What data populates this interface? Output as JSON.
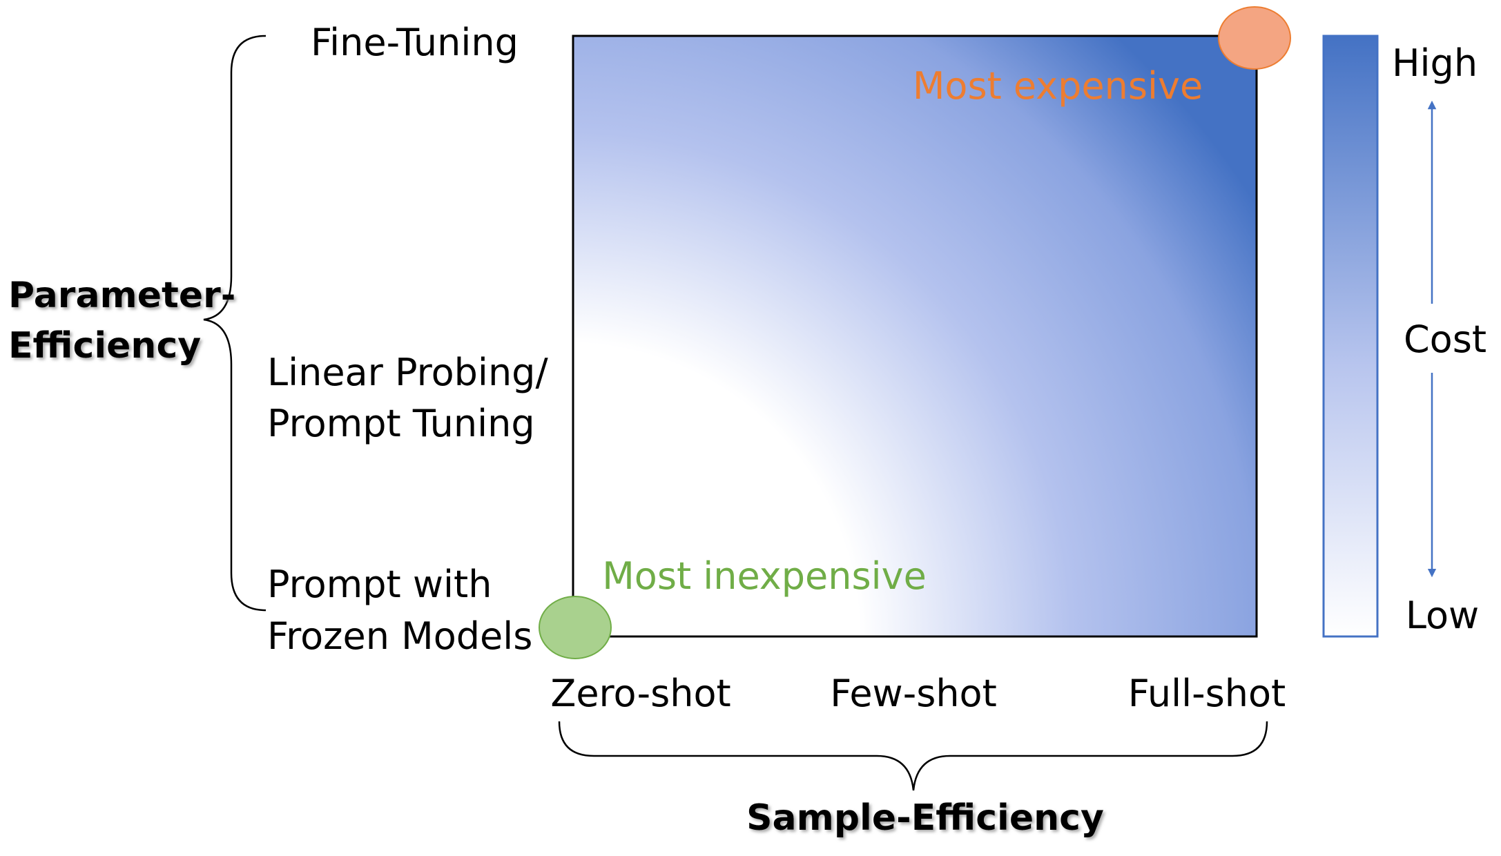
{
  "y_axis": {
    "title_line1": "Parameter-",
    "title_line2": "Efficiency",
    "levels": {
      "fine_tuning": "Fine-Tuning",
      "linear_probing_line1": "Linear Probing/",
      "linear_probing_line2": "Prompt Tuning",
      "prompt_frozen_line1": "Prompt with",
      "prompt_frozen_line2": "Frozen Models"
    }
  },
  "x_axis": {
    "title": "Sample-Efficiency",
    "levels": {
      "zero_shot": "Zero-shot",
      "few_shot": "Few-shot",
      "full_shot": "Full-shot"
    }
  },
  "annotations": {
    "most_expensive": "Most expensive",
    "most_inexpensive": "Most inexpensive"
  },
  "cost_scale": {
    "high": "High",
    "label": "Cost",
    "low": "Low"
  },
  "colors": {
    "gradient_high": "#4472c4",
    "gradient_mid": "#b4c2ee",
    "gradient_low": "#ffffff",
    "expensive_orange": "#ed7d31",
    "expensive_marker": "#f4a582",
    "inexpensive_green": "#70ad47",
    "inexpensive_marker": "#a9d18e",
    "arrow_blue": "#4472c4"
  }
}
